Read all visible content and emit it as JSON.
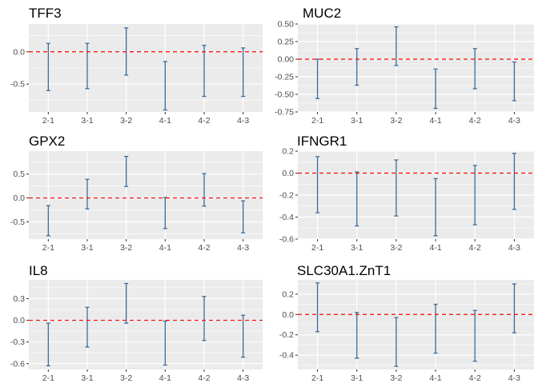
{
  "chart_data": [
    {
      "type": "errorbar",
      "title": "TFF3",
      "xlabel": "",
      "ylabel": "",
      "categories": [
        "2-1",
        "3-1",
        "3-2",
        "4-1",
        "4-2",
        "4-3"
      ],
      "lower": [
        -0.6,
        -0.57,
        -0.36,
        -0.9,
        -0.69,
        -0.69
      ],
      "upper": [
        0.13,
        0.13,
        0.37,
        -0.15,
        0.1,
        0.06
      ],
      "ylim": [
        -0.93,
        0.43
      ],
      "yticks": [
        0.0,
        -0.5
      ],
      "ytick_labels": [
        "0.0",
        "-0.5"
      ],
      "reference_line": 0,
      "grid": true
    },
    {
      "type": "errorbar",
      "title": "MUC2",
      "xlabel": "",
      "ylabel": "",
      "categories": [
        "2-1",
        "3-1",
        "3-2",
        "4-1",
        "4-2",
        "4-3"
      ],
      "lower": [
        -0.56,
        -0.37,
        -0.09,
        -0.7,
        -0.42,
        -0.59
      ],
      "upper": [
        0.0,
        0.15,
        0.46,
        -0.14,
        0.15,
        -0.04
      ],
      "ylim": [
        -0.75,
        0.5
      ],
      "yticks": [
        0.5,
        0.25,
        0.0,
        -0.25,
        -0.5,
        -0.75
      ],
      "ytick_labels": [
        "0.50",
        "0.25",
        "0.00",
        "-0.25",
        "-0.50",
        "-0.75"
      ],
      "reference_line": 0,
      "grid": true
    },
    {
      "type": "errorbar",
      "title": "GPX2",
      "xlabel": "",
      "ylabel": "",
      "categories": [
        "2-1",
        "3-1",
        "3-2",
        "4-1",
        "4-2",
        "4-3"
      ],
      "lower": [
        -0.79,
        -0.23,
        0.24,
        -0.64,
        -0.17,
        -0.73
      ],
      "upper": [
        -0.16,
        0.39,
        0.87,
        0.01,
        0.51,
        -0.06
      ],
      "ylim": [
        -0.86,
        0.98
      ],
      "yticks": [
        0.5,
        0.0,
        -0.5
      ],
      "ytick_labels": [
        "0.5",
        "0.0",
        "-0.5"
      ],
      "reference_line": 0,
      "grid": true
    },
    {
      "type": "errorbar",
      "title": "IFNGR1",
      "xlabel": "",
      "ylabel": "",
      "categories": [
        "2-1",
        "3-1",
        "3-2",
        "4-1",
        "4-2",
        "4-3"
      ],
      "lower": [
        -0.36,
        -0.48,
        -0.39,
        -0.57,
        -0.47,
        -0.33
      ],
      "upper": [
        0.15,
        0.01,
        0.12,
        -0.05,
        0.07,
        0.18
      ],
      "ylim": [
        -0.6,
        0.2
      ],
      "yticks": [
        0.2,
        0.0,
        -0.2,
        -0.4,
        -0.6
      ],
      "ytick_labels": [
        "0.2",
        "0.0",
        "-0.2",
        "-0.4",
        "-0.6"
      ],
      "reference_line": 0,
      "grid": true
    },
    {
      "type": "errorbar",
      "title": "IL8",
      "xlabel": "",
      "ylabel": "",
      "categories": [
        "2-1",
        "3-1",
        "3-2",
        "4-1",
        "4-2",
        "4-3"
      ],
      "lower": [
        -0.63,
        -0.37,
        -0.04,
        -0.62,
        -0.28,
        -0.51
      ],
      "upper": [
        -0.04,
        0.18,
        0.51,
        -0.01,
        0.33,
        0.07
      ],
      "ylim": [
        -0.68,
        0.56
      ],
      "yticks": [
        0.3,
        0.0,
        -0.3,
        -0.6
      ],
      "ytick_labels": [
        "0.3",
        "0.0",
        "-0.3",
        "-0.6"
      ],
      "reference_line": 0,
      "grid": true
    },
    {
      "type": "errorbar",
      "title": "SLC30A1.ZnT1",
      "xlabel": "",
      "ylabel": "",
      "categories": [
        "2-1",
        "3-1",
        "3-2",
        "4-1",
        "4-2",
        "4-3"
      ],
      "lower": [
        -0.17,
        -0.43,
        -0.51,
        -0.38,
        -0.46,
        -0.18
      ],
      "upper": [
        0.31,
        0.02,
        -0.03,
        0.1,
        0.04,
        0.3
      ],
      "ylim": [
        -0.54,
        0.34
      ],
      "yticks": [
        0.2,
        0.0,
        -0.2,
        -0.4
      ],
      "ytick_labels": [
        "0.2",
        "0.0",
        "-0.2",
        "-0.4"
      ],
      "reference_line": 0,
      "grid": true
    }
  ],
  "colors": {
    "panel_background": "#ebebeb",
    "grid": "#ffffff",
    "errorbar": "#3a6b9a",
    "reference_line": "#ff0000",
    "tick_text": "#4d4d4d",
    "title_text": "#000000"
  }
}
